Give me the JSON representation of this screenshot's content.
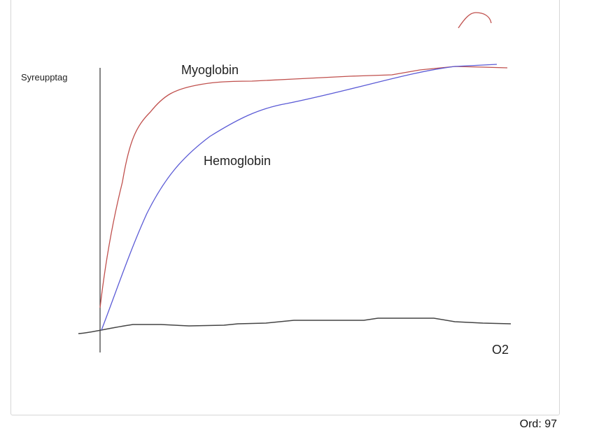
{
  "drawing": {
    "y_axis_label": "Syreupptag",
    "x_axis_label": "O2",
    "curve_labels": {
      "myoglobin": "Myoglobin",
      "hemoglobin": "Hemoglobin"
    },
    "colors": {
      "myoglobin": "#c0504d",
      "hemoglobin": "#5b5bd6",
      "axis": "#333333"
    }
  },
  "footer": {
    "word_count": "Ord: 97"
  }
}
